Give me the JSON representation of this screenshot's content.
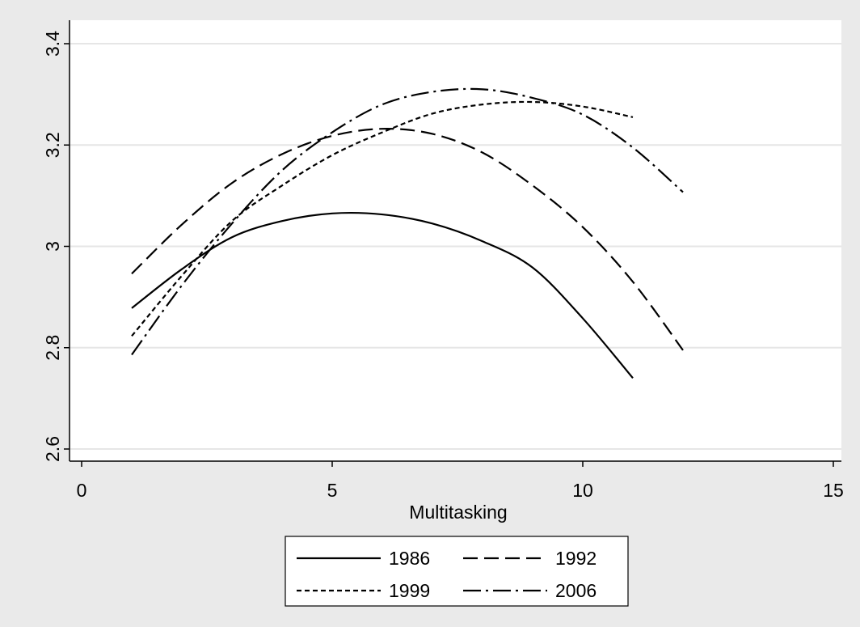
{
  "chart_data": {
    "type": "line",
    "title": "",
    "xlabel": "Multitasking",
    "ylabel": "",
    "xlim": [
      -0.2,
      15.2
    ],
    "ylim": [
      2.6,
      3.41
    ],
    "x_ticks": [
      0,
      5,
      10,
      15
    ],
    "x_tick_labels": [
      "0",
      "5",
      "10",
      "15"
    ],
    "y_ticks": [
      2.6,
      2.8,
      3.0,
      3.2,
      3.4
    ],
    "y_tick_labels": [
      "2.6",
      "2.8",
      "3",
      "3.2",
      "3.4"
    ],
    "grid": "horizontal",
    "legend_position": "bottom",
    "series": [
      {
        "name": "1986",
        "dash": "solid",
        "x": [
          1,
          2,
          3,
          4,
          5,
          6,
          7,
          8,
          9,
          10,
          11
        ],
        "y": [
          2.878,
          2.955,
          3.018,
          3.05,
          3.065,
          3.063,
          3.045,
          3.01,
          2.958,
          2.858,
          2.74
        ]
      },
      {
        "name": "1992",
        "dash": "dash",
        "x": [
          1,
          2,
          3,
          4,
          5,
          6,
          7,
          8,
          9,
          10,
          11,
          12
        ],
        "y": [
          2.946,
          3.043,
          3.125,
          3.182,
          3.218,
          3.232,
          3.222,
          3.185,
          3.12,
          3.038,
          2.93,
          2.795
        ]
      },
      {
        "name": "1999",
        "dash": "shortdash",
        "x": [
          1,
          2,
          3,
          4,
          5,
          6,
          7,
          8,
          9,
          10,
          11
        ],
        "y": [
          2.823,
          2.942,
          3.05,
          3.12,
          3.18,
          3.225,
          3.262,
          3.28,
          3.285,
          3.276,
          3.255
        ]
      },
      {
        "name": "2006",
        "dash": "dashdot",
        "x": [
          1,
          2,
          3,
          4,
          5,
          6,
          7,
          8,
          9,
          10,
          11,
          12
        ],
        "y": [
          2.786,
          2.923,
          3.045,
          3.15,
          3.225,
          3.28,
          3.305,
          3.31,
          3.293,
          3.26,
          3.195,
          3.107
        ]
      }
    ]
  }
}
